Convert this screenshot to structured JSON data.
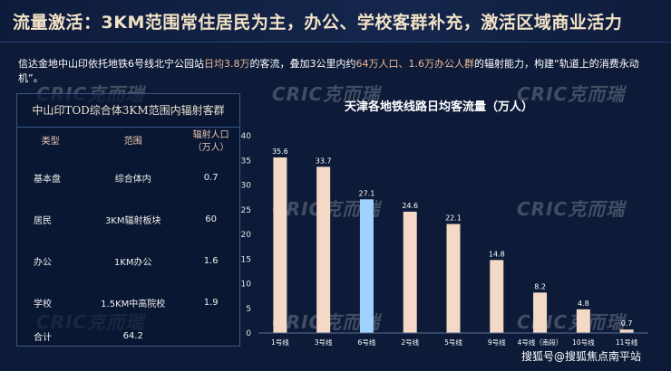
{
  "header": {
    "title": "流量激活：3KM范围常住居民为主，办公、学校客群补充，激活区域商业活力"
  },
  "description": {
    "p1": "信达金地中山印依托地铁6号线北宁公园站",
    "h1": "日均3.8万",
    "p2": "的客流，叠加3公里内约",
    "h2": "64万人口、1.6万办公人群",
    "p3": "的辐射能力，构建“轨道上的消费永动机”。"
  },
  "watermark": {
    "text": "CRIC克而瑞"
  },
  "table": {
    "title": "中山印TOD综合体3KM范围内辐射客群",
    "headers": {
      "type": "类型",
      "range": "范围",
      "pop_line1": "辐射人口",
      "pop_line2": "（万人）"
    },
    "rows": [
      {
        "type": "基本盘",
        "range": "综合体内",
        "value": "0.7"
      },
      {
        "type": "居民",
        "range": "3KM辐射板块",
        "value": "60"
      },
      {
        "type": "办公",
        "range": "1KM办公",
        "value": "1.6"
      },
      {
        "type": "学校",
        "range": "1.5KM中高院校",
        "value": "1.9"
      }
    ],
    "total": {
      "label": "合计",
      "value": "64.2"
    }
  },
  "chart_data": {
    "type": "bar",
    "title": "天津各地铁线路日均客流量（万人）",
    "categories": [
      "1号线",
      "3号线",
      "6号线",
      "2号线",
      "5号线",
      "9号线",
      "4号线（南段）",
      "10号线",
      "11号线"
    ],
    "values": [
      35.6,
      33.7,
      27.1,
      24.6,
      22.1,
      14.8,
      8.2,
      4.8,
      0.7
    ],
    "labels": [
      "35.6",
      "33.7",
      "27.1",
      "24.6",
      "22.1",
      "14.8",
      "8.2",
      "4.8",
      "0.7"
    ],
    "highlight_index": 2,
    "ylim": [
      0,
      40
    ],
    "yticks": [
      0,
      5,
      10,
      15,
      20,
      25,
      30,
      35,
      40
    ],
    "colors": {
      "bar": "#f4d9c6",
      "highlight": "#9fd2ff"
    }
  },
  "footer": {
    "brand": "搜狐号@搜狐焦点南平站"
  }
}
